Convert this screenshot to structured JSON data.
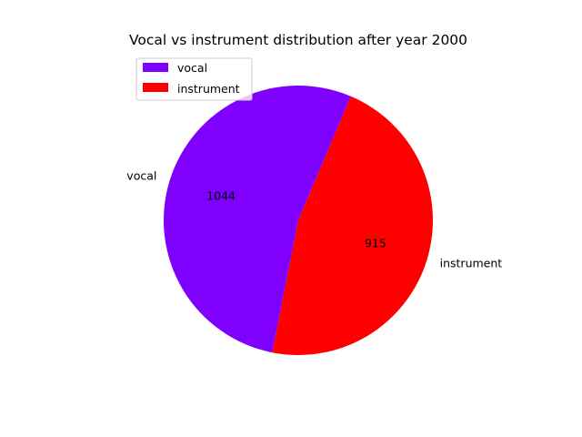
{
  "chart_data": {
    "type": "pie",
    "title": "Vocal vs instrument distribution after year 2000",
    "slices": [
      {
        "label": "vocal",
        "value": 1044,
        "value_label": "1044",
        "color": "#7f00ff"
      },
      {
        "label": "instrument",
        "value": 915,
        "value_label": "915",
        "color": "#ff0000"
      }
    ],
    "start_angle_deg": 67,
    "direction": "counterclockwise",
    "legend": {
      "position": "top-left",
      "entries": [
        "vocal",
        "instrument"
      ]
    }
  }
}
